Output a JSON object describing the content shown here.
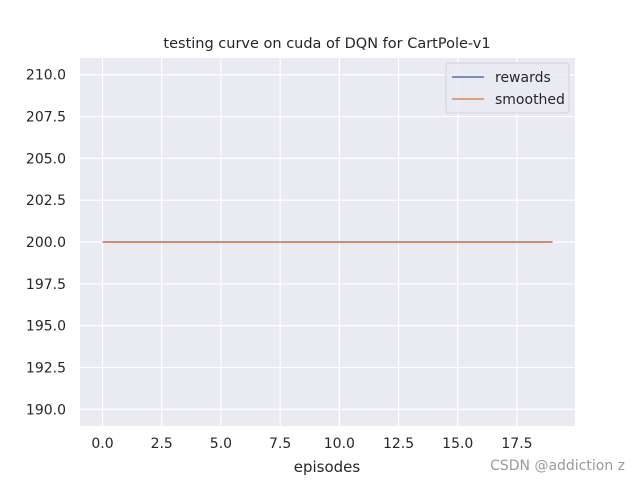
{
  "chart_data": {
    "type": "line",
    "title": "testing curve on cuda of DQN for CartPole-v1",
    "xlabel": "episodes",
    "ylabel": "",
    "x": [
      0,
      1,
      2,
      3,
      4,
      5,
      6,
      7,
      8,
      9,
      10,
      11,
      12,
      13,
      14,
      15,
      16,
      17,
      18,
      19
    ],
    "series": [
      {
        "name": "rewards",
        "color": "#4c72b0",
        "values": [
          200,
          200,
          200,
          200,
          200,
          200,
          200,
          200,
          200,
          200,
          200,
          200,
          200,
          200,
          200,
          200,
          200,
          200,
          200,
          200
        ]
      },
      {
        "name": "smoothed",
        "color": "#dd8452",
        "values": [
          200,
          200,
          200,
          200,
          200,
          200,
          200,
          200,
          200,
          200,
          200,
          200,
          200,
          200,
          200,
          200,
          200,
          200,
          200,
          200
        ]
      }
    ],
    "xlim": [
      -0.95,
      19.95
    ],
    "ylim": [
      189.0,
      211.0
    ],
    "xticks": [
      "0.0",
      "2.5",
      "5.0",
      "7.5",
      "10.0",
      "12.5",
      "15.0",
      "17.5"
    ],
    "yticks": [
      "190.0",
      "192.5",
      "195.0",
      "197.5",
      "200.0",
      "202.5",
      "205.0",
      "207.5",
      "210.0"
    ],
    "grid": true,
    "legend_position": "upper right",
    "background_color": "#eaeaf2",
    "grid_color": "#ffffff"
  },
  "watermark": "CSDN @addiction z"
}
